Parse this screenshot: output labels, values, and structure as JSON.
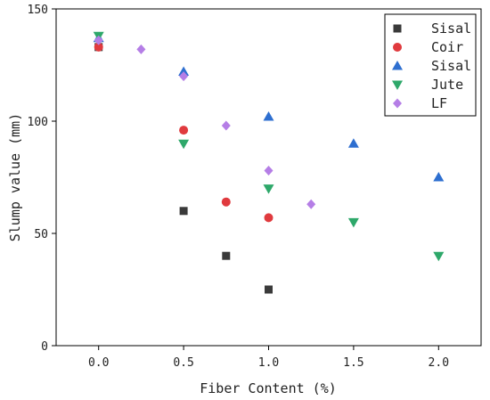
{
  "chart_data": {
    "type": "scatter",
    "xlabel": "Fiber Content (%)",
    "ylabel": "Slump value (mm)",
    "xlim": [
      -0.25,
      2.25
    ],
    "ylim": [
      0,
      150
    ],
    "x_ticks": [
      0.0,
      0.5,
      1.0,
      1.5,
      2.0
    ],
    "x_tick_labels": [
      "0.0",
      "0.5",
      "1.0",
      "1.5",
      "2.0"
    ],
    "y_ticks": [
      0,
      50,
      100,
      150
    ],
    "y_tick_labels": [
      "0",
      "50",
      "100",
      "150"
    ],
    "grid": false,
    "legend_position": "top-right",
    "series": [
      {
        "name": "Sisal",
        "marker": "square",
        "color": "#3a3a3a",
        "x": [
          0.0,
          0.5,
          0.75,
          1.0
        ],
        "y": [
          133,
          60,
          40,
          25
        ]
      },
      {
        "name": "Coir",
        "marker": "circle",
        "color": "#e03a3e",
        "x": [
          0.0,
          0.5,
          0.75,
          1.0
        ],
        "y": [
          133,
          96,
          64,
          57
        ]
      },
      {
        "name": "Sisal",
        "marker": "triangle-up",
        "color": "#2e6fd0",
        "x": [
          0.0,
          0.5,
          1.0,
          1.5,
          2.0
        ],
        "y": [
          137,
          122,
          102,
          90,
          75
        ]
      },
      {
        "name": "Jute",
        "marker": "triangle-down",
        "color": "#2ea86a",
        "x": [
          0.0,
          0.5,
          1.0,
          1.5,
          2.0
        ],
        "y": [
          138,
          90,
          70,
          55,
          40
        ]
      },
      {
        "name": "LF",
        "marker": "diamond",
        "color": "#b57ee6",
        "x": [
          0.0,
          0.25,
          0.5,
          0.75,
          1.0,
          1.25
        ],
        "y": [
          136,
          132,
          120,
          98,
          78,
          63
        ]
      }
    ]
  }
}
